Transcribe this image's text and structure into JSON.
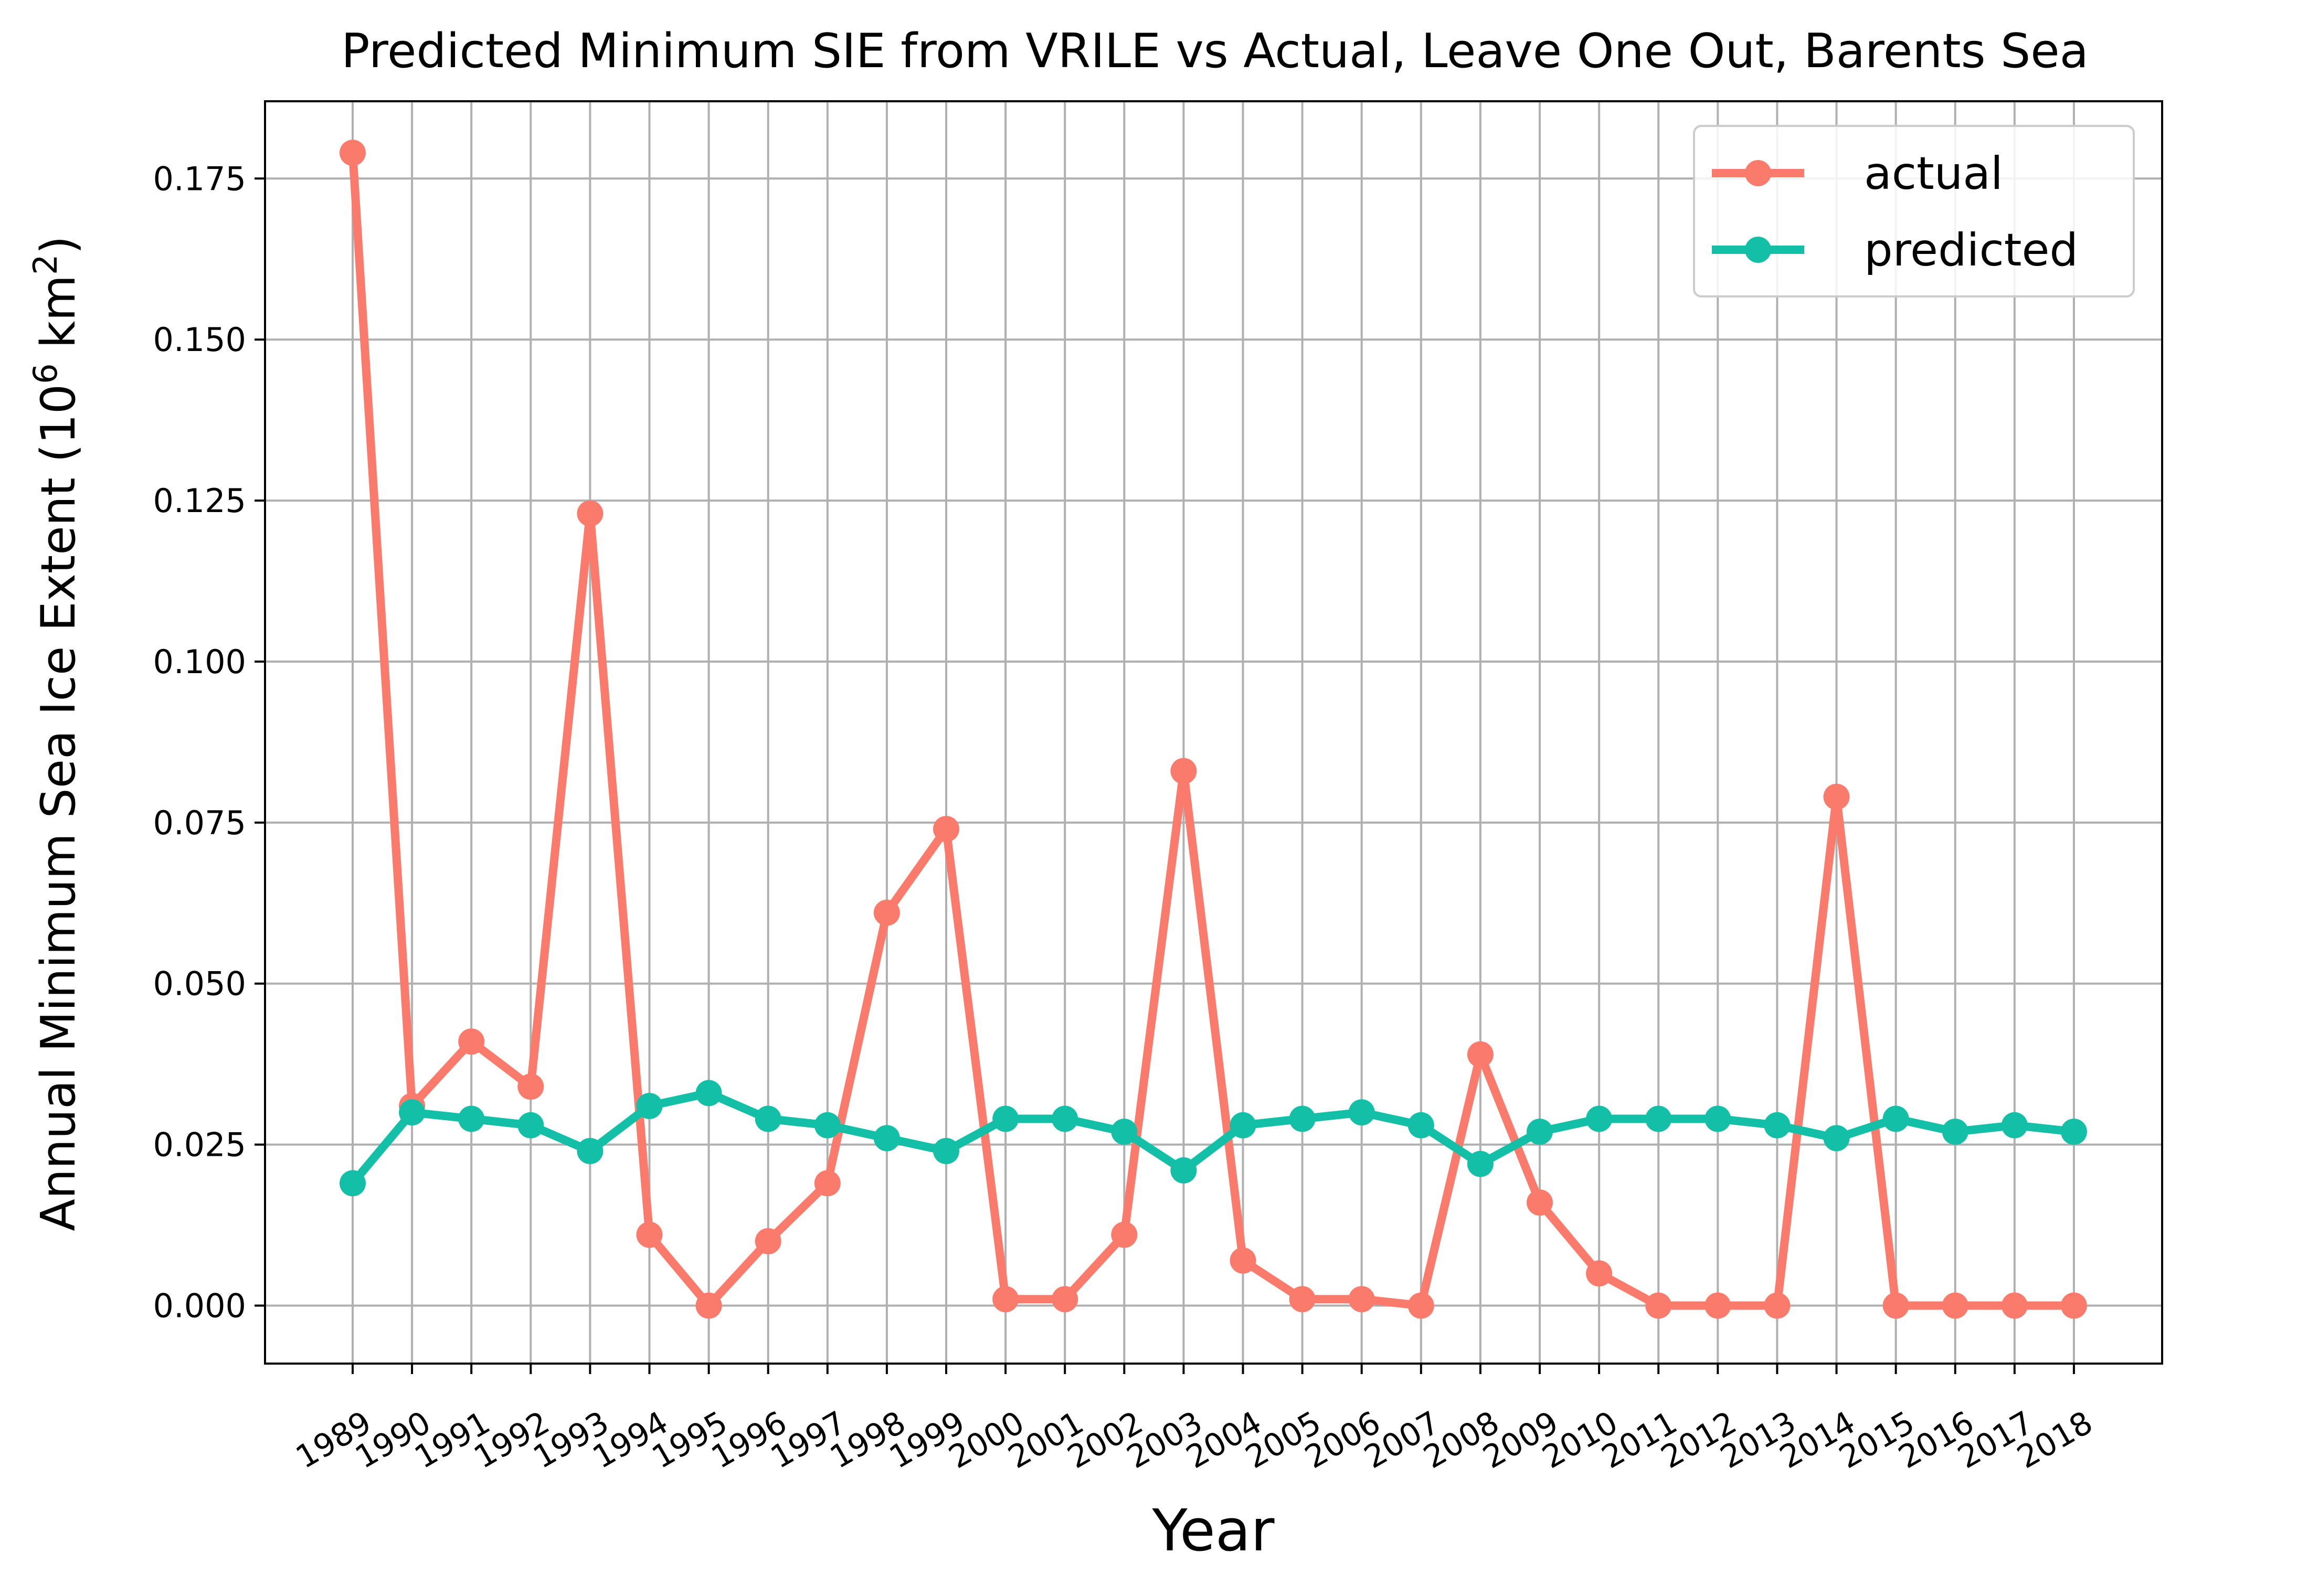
{
  "chart_data": {
    "type": "line",
    "title": "Predicted Minimum SIE from VRILE vs Actual, Leave One Out, Barents Sea",
    "xlabel": "Year",
    "ylabel": {
      "main": "Annual Minimum Sea Ice Extent (10",
      "exp1": "6",
      "mid": " km",
      "exp2": "2",
      "end": ")"
    },
    "x": [
      "1989",
      "1990",
      "1991",
      "1992",
      "1993",
      "1994",
      "1995",
      "1996",
      "1997",
      "1998",
      "1999",
      "2000",
      "2001",
      "2002",
      "2003",
      "2004",
      "2005",
      "2006",
      "2007",
      "2008",
      "2009",
      "2010",
      "2011",
      "2012",
      "2013",
      "2014",
      "2015",
      "2016",
      "2017",
      "2018"
    ],
    "ylim": [
      -0.009,
      0.187
    ],
    "yticks": [
      "0.000",
      "0.025",
      "0.050",
      "0.075",
      "0.100",
      "0.125",
      "0.150",
      "0.175"
    ],
    "grid": true,
    "legend_position": "upper right",
    "series": [
      {
        "name": "actual",
        "color": "#fa7b6c",
        "values": [
          0.179,
          0.031,
          0.041,
          0.034,
          0.123,
          0.011,
          0.0,
          0.01,
          0.019,
          0.061,
          0.074,
          0.001,
          0.001,
          0.011,
          0.083,
          0.007,
          0.001,
          0.001,
          0.0,
          0.039,
          0.016,
          0.005,
          0.0,
          0.0,
          0.0,
          0.079,
          0.0,
          0.0,
          0.0,
          0.0
        ]
      },
      {
        "name": "predicted",
        "color": "#13bfa6",
        "values": [
          0.019,
          0.03,
          0.029,
          0.028,
          0.024,
          0.031,
          0.033,
          0.029,
          0.028,
          0.026,
          0.024,
          0.029,
          0.029,
          0.027,
          0.021,
          0.028,
          0.029,
          0.03,
          0.028,
          0.022,
          0.027,
          0.029,
          0.029,
          0.029,
          0.028,
          0.026,
          0.029,
          0.027,
          0.028,
          0.027
        ]
      }
    ]
  }
}
